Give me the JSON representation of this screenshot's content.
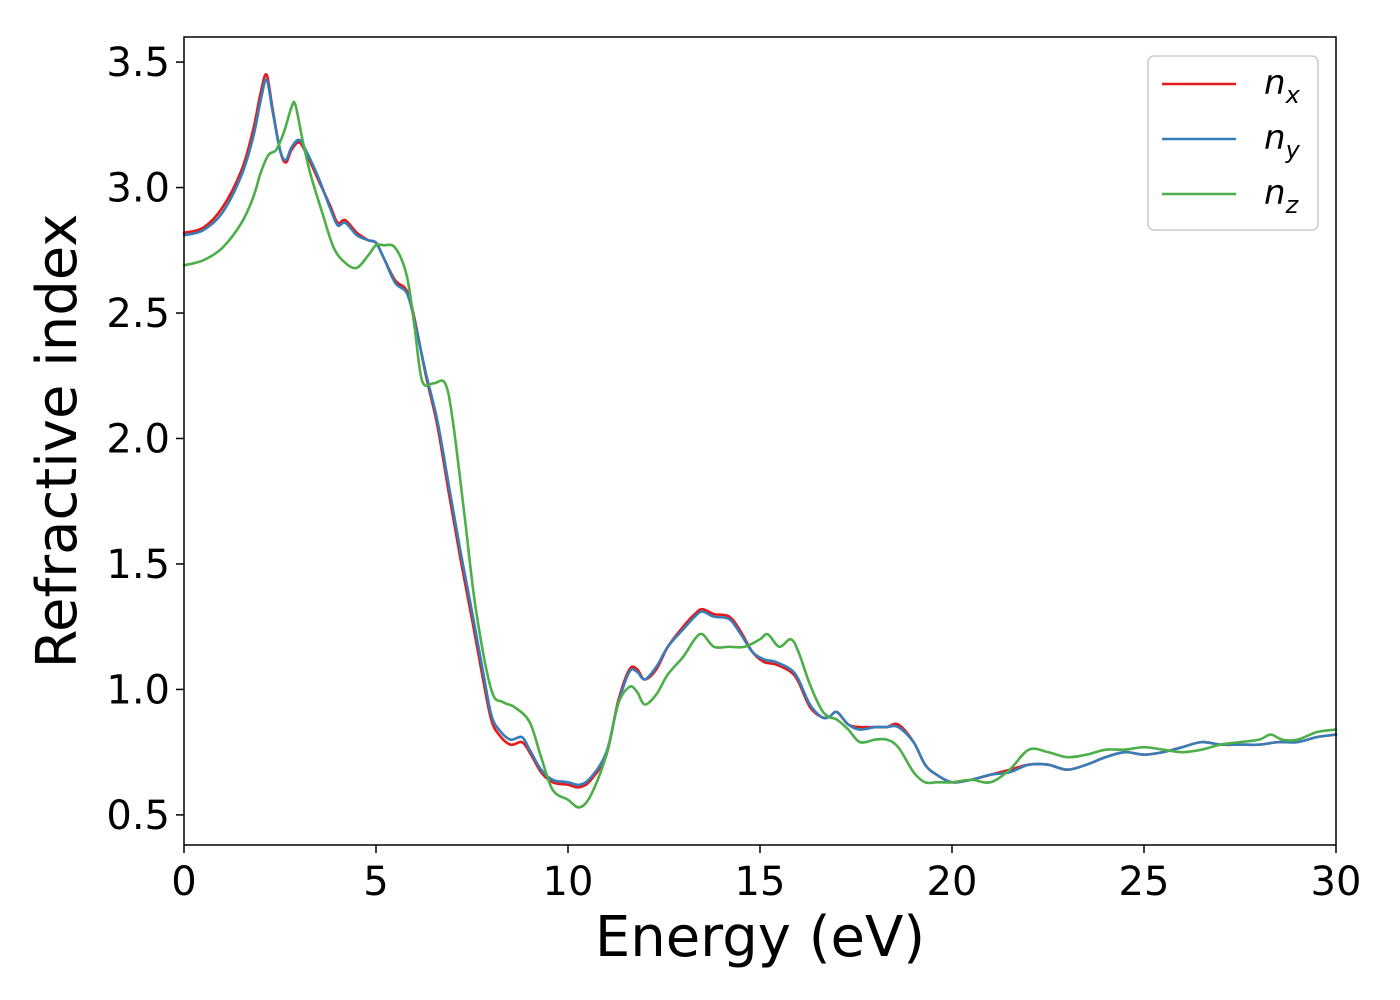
{
  "chart_data": {
    "type": "line",
    "xlabel": "Energy (eV)",
    "ylabel": "Refractive index",
    "xlim": [
      0,
      30
    ],
    "ylim": [
      0.38,
      3.6
    ],
    "xticks": [
      0,
      5,
      10,
      15,
      20,
      25,
      30
    ],
    "xtick_labels": [
      "0",
      "5",
      "10",
      "15",
      "20",
      "25",
      "30"
    ],
    "yticks": [
      0.5,
      1.0,
      1.5,
      2.0,
      2.5,
      3.0,
      3.5
    ],
    "ytick_labels": [
      "0.5",
      "1.0",
      "1.5",
      "2.0",
      "2.5",
      "3.0",
      "3.5"
    ],
    "grid": false,
    "legend_position": "top-right",
    "colors": {
      "nx": "#e41a1c",
      "ny": "#377eb8",
      "nz": "#4daf4a"
    },
    "series": [
      {
        "name": "n_x",
        "label_base": "n",
        "label_sub": "x",
        "color": "#e41a1c",
        "x": [
          0,
          0.5,
          1.0,
          1.5,
          1.8,
          2.0,
          2.15,
          2.3,
          2.5,
          2.65,
          2.8,
          3.0,
          3.2,
          3.5,
          3.8,
          4.0,
          4.2,
          4.5,
          4.8,
          5.0,
          5.2,
          5.5,
          5.8,
          6.0,
          6.3,
          6.6,
          6.9,
          7.2,
          7.5,
          7.8,
          8.0,
          8.2,
          8.5,
          8.8,
          9.0,
          9.3,
          9.6,
          10.0,
          10.3,
          10.6,
          11.0,
          11.3,
          11.6,
          11.8,
          12.0,
          12.3,
          12.6,
          13.0,
          13.3,
          13.5,
          13.8,
          14.2,
          14.5,
          14.8,
          15.1,
          15.4,
          15.8,
          16.0,
          16.3,
          16.6,
          16.8,
          17.0,
          17.3,
          17.6,
          18.0,
          18.3,
          18.6,
          19.0,
          19.3,
          19.6,
          20.0,
          20.5,
          21.0,
          21.5,
          22.0,
          22.5,
          23.0,
          23.5,
          24.0,
          24.5,
          25.0,
          25.5,
          26.0,
          26.5,
          27.0,
          27.5,
          28.0,
          28.5,
          29.0,
          29.5,
          30.0
        ],
        "y": [
          2.82,
          2.84,
          2.92,
          3.07,
          3.23,
          3.38,
          3.45,
          3.32,
          3.15,
          3.1,
          3.15,
          3.18,
          3.13,
          3.03,
          2.93,
          2.86,
          2.87,
          2.82,
          2.79,
          2.78,
          2.72,
          2.63,
          2.59,
          2.48,
          2.25,
          2.05,
          1.78,
          1.52,
          1.28,
          1.03,
          0.88,
          0.82,
          0.78,
          0.79,
          0.75,
          0.67,
          0.63,
          0.62,
          0.61,
          0.64,
          0.74,
          0.95,
          1.08,
          1.08,
          1.04,
          1.08,
          1.17,
          1.25,
          1.3,
          1.32,
          1.3,
          1.29,
          1.23,
          1.15,
          1.11,
          1.1,
          1.07,
          1.03,
          0.93,
          0.89,
          0.89,
          0.91,
          0.86,
          0.85,
          0.85,
          0.85,
          0.86,
          0.79,
          0.7,
          0.66,
          0.63,
          0.64,
          0.66,
          0.68,
          0.7,
          0.7,
          0.68,
          0.7,
          0.73,
          0.75,
          0.74,
          0.75,
          0.77,
          0.79,
          0.78,
          0.78,
          0.78,
          0.79,
          0.79,
          0.81,
          0.82
        ]
      },
      {
        "name": "n_y",
        "label_base": "n",
        "label_sub": "y",
        "color": "#377eb8",
        "x": [
          0,
          0.5,
          1.0,
          1.5,
          1.8,
          2.0,
          2.15,
          2.3,
          2.5,
          2.65,
          2.8,
          3.0,
          3.2,
          3.5,
          3.8,
          4.0,
          4.2,
          4.5,
          4.8,
          5.0,
          5.2,
          5.5,
          5.8,
          6.0,
          6.3,
          6.6,
          6.9,
          7.2,
          7.5,
          7.8,
          8.0,
          8.2,
          8.5,
          8.8,
          9.0,
          9.3,
          9.6,
          10.0,
          10.3,
          10.6,
          11.0,
          11.3,
          11.6,
          11.8,
          12.0,
          12.3,
          12.6,
          13.0,
          13.3,
          13.5,
          13.8,
          14.2,
          14.5,
          14.8,
          15.1,
          15.4,
          15.8,
          16.0,
          16.3,
          16.6,
          16.8,
          17.0,
          17.3,
          17.6,
          18.0,
          18.3,
          18.6,
          19.0,
          19.3,
          19.6,
          20.0,
          20.5,
          21.0,
          21.5,
          22.0,
          22.5,
          23.0,
          23.5,
          24.0,
          24.5,
          25.0,
          25.5,
          26.0,
          26.5,
          27.0,
          27.5,
          28.0,
          28.5,
          29.0,
          29.5,
          30.0
        ],
        "y": [
          2.81,
          2.83,
          2.9,
          3.05,
          3.2,
          3.35,
          3.43,
          3.31,
          3.15,
          3.11,
          3.16,
          3.19,
          3.14,
          3.04,
          2.92,
          2.85,
          2.86,
          2.81,
          2.79,
          2.78,
          2.72,
          2.62,
          2.58,
          2.47,
          2.26,
          2.07,
          1.81,
          1.55,
          1.31,
          1.06,
          0.9,
          0.84,
          0.8,
          0.81,
          0.76,
          0.68,
          0.64,
          0.63,
          0.62,
          0.65,
          0.75,
          0.94,
          1.07,
          1.07,
          1.04,
          1.09,
          1.17,
          1.24,
          1.29,
          1.31,
          1.29,
          1.28,
          1.22,
          1.15,
          1.12,
          1.11,
          1.08,
          1.04,
          0.94,
          0.89,
          0.89,
          0.91,
          0.86,
          0.84,
          0.85,
          0.85,
          0.85,
          0.79,
          0.7,
          0.66,
          0.63,
          0.64,
          0.66,
          0.67,
          0.7,
          0.7,
          0.68,
          0.7,
          0.73,
          0.75,
          0.74,
          0.75,
          0.77,
          0.79,
          0.78,
          0.78,
          0.78,
          0.79,
          0.79,
          0.81,
          0.82
        ]
      },
      {
        "name": "n_z",
        "label_base": "n",
        "label_sub": "z",
        "color": "#4daf4a",
        "x": [
          0,
          0.5,
          1.0,
          1.5,
          1.8,
          2.0,
          2.2,
          2.4,
          2.6,
          2.8,
          2.9,
          3.1,
          3.3,
          3.6,
          3.9,
          4.2,
          4.5,
          4.8,
          5.0,
          5.2,
          5.5,
          5.8,
          6.0,
          6.2,
          6.5,
          6.8,
          7.0,
          7.3,
          7.6,
          8.0,
          8.3,
          8.6,
          9.0,
          9.3,
          9.6,
          10.0,
          10.3,
          10.6,
          11.0,
          11.3,
          11.6,
          11.8,
          12.0,
          12.3,
          12.6,
          13.0,
          13.3,
          13.5,
          13.8,
          14.2,
          14.6,
          15.0,
          15.2,
          15.5,
          15.8,
          16.0,
          16.3,
          16.6,
          16.8,
          17.0,
          17.3,
          17.6,
          18.0,
          18.3,
          18.6,
          19.0,
          19.3,
          19.6,
          20.0,
          20.5,
          21.0,
          21.5,
          22.0,
          22.5,
          23.0,
          23.5,
          24.0,
          24.5,
          25.0,
          25.5,
          26.0,
          26.5,
          27.0,
          27.5,
          28.0,
          28.3,
          28.6,
          29.0,
          29.5,
          30.0
        ],
        "y": [
          2.69,
          2.71,
          2.76,
          2.86,
          2.96,
          3.06,
          3.13,
          3.15,
          3.22,
          3.32,
          3.33,
          3.18,
          3.05,
          2.9,
          2.76,
          2.7,
          2.68,
          2.73,
          2.77,
          2.77,
          2.76,
          2.65,
          2.45,
          2.23,
          2.22,
          2.22,
          2.07,
          1.7,
          1.32,
          1.0,
          0.95,
          0.93,
          0.87,
          0.73,
          0.6,
          0.56,
          0.53,
          0.58,
          0.74,
          0.94,
          1.01,
          0.99,
          0.94,
          0.98,
          1.06,
          1.13,
          1.2,
          1.22,
          1.17,
          1.17,
          1.17,
          1.2,
          1.22,
          1.17,
          1.2,
          1.15,
          1.02,
          0.92,
          0.89,
          0.88,
          0.84,
          0.79,
          0.8,
          0.8,
          0.77,
          0.67,
          0.63,
          0.63,
          0.63,
          0.64,
          0.63,
          0.68,
          0.76,
          0.75,
          0.73,
          0.74,
          0.76,
          0.76,
          0.77,
          0.76,
          0.75,
          0.76,
          0.78,
          0.79,
          0.8,
          0.82,
          0.8,
          0.8,
          0.83,
          0.84
        ]
      }
    ]
  }
}
